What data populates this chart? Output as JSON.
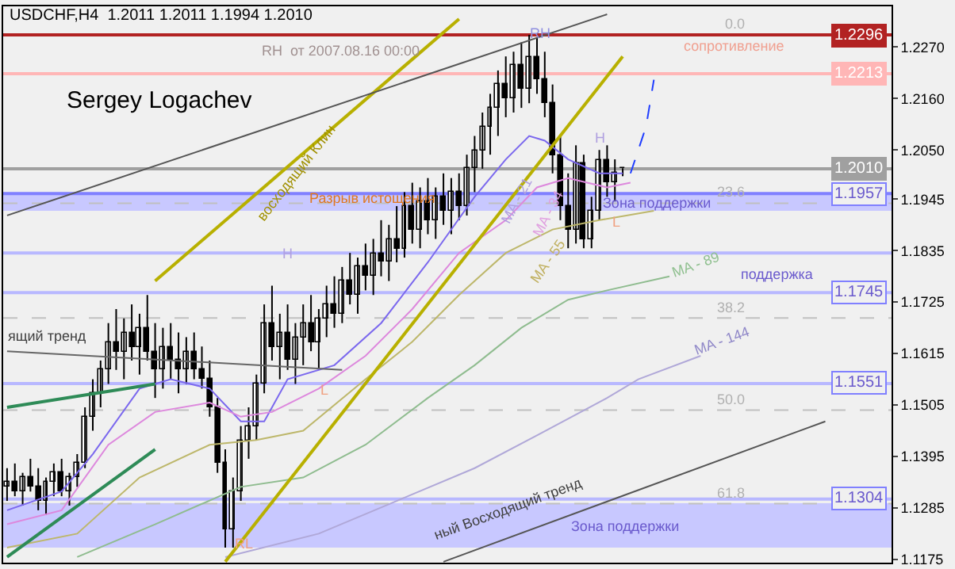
{
  "chart_data": {
    "type": "candlestick",
    "title": "USDCHF,H4  1.2011 1.2011 1.1994 1.2010",
    "categories": [
      null,
      null,
      null,
      null,
      null,
      null,
      null,
      null,
      null,
      null,
      null,
      null,
      null,
      null,
      null,
      null,
      null,
      null,
      null,
      null,
      null,
      null,
      null,
      null,
      null,
      null,
      null,
      null,
      null,
      null,
      null,
      null,
      null,
      null,
      null,
      null,
      null,
      null,
      null,
      null,
      null,
      null,
      null,
      null,
      null,
      null,
      null,
      null,
      null,
      null,
      null,
      null,
      null,
      null,
      null,
      null,
      null,
      null,
      null,
      null,
      null,
      null,
      null,
      null,
      null,
      null,
      null,
      null,
      null,
      null,
      null,
      null,
      null,
      null,
      null,
      null,
      null,
      null,
      null,
      null,
      null,
      null,
      null,
      null,
      null,
      null,
      null,
      null,
      null,
      null,
      null,
      null,
      null,
      null,
      null,
      null,
      null,
      null,
      null,
      null,
      null,
      null,
      null,
      null,
      null,
      null,
      null,
      null,
      null,
      null,
      null,
      null,
      null,
      null
    ],
    "ohlc": [
      [
        1.133,
        1.137,
        1.13,
        1.134
      ],
      [
        1.134,
        1.138,
        1.131,
        1.132
      ],
      [
        1.132,
        1.136,
        1.129,
        1.135
      ],
      [
        1.135,
        1.139,
        1.132,
        1.133
      ],
      [
        1.133,
        1.137,
        1.128,
        1.13
      ],
      [
        1.13,
        1.135,
        1.127,
        1.134
      ],
      [
        1.134,
        1.138,
        1.131,
        1.136
      ],
      [
        1.136,
        1.139,
        1.131,
        1.132
      ],
      [
        1.132,
        1.136,
        1.129,
        1.135
      ],
      [
        1.135,
        1.14,
        1.133,
        1.138
      ],
      [
        1.138,
        1.15,
        1.137,
        1.148
      ],
      [
        1.148,
        1.156,
        1.145,
        1.153
      ],
      [
        1.153,
        1.16,
        1.15,
        1.158
      ],
      [
        1.158,
        1.168,
        1.155,
        1.164
      ],
      [
        1.164,
        1.171,
        1.158,
        1.162
      ],
      [
        1.162,
        1.169,
        1.156,
        1.166
      ],
      [
        1.166,
        1.172,
        1.16,
        1.163
      ],
      [
        1.163,
        1.17,
        1.157,
        1.167
      ],
      [
        1.167,
        1.174,
        1.16,
        1.162
      ],
      [
        1.162,
        1.168,
        1.152,
        1.158
      ],
      [
        1.158,
        1.167,
        1.154,
        1.163
      ],
      [
        1.163,
        1.168,
        1.156,
        1.16
      ],
      [
        1.16,
        1.166,
        1.153,
        1.158
      ],
      [
        1.158,
        1.165,
        1.155,
        1.162
      ],
      [
        1.162,
        1.166,
        1.156,
        1.158
      ],
      [
        1.158,
        1.163,
        1.154,
        1.156
      ],
      [
        1.156,
        1.16,
        1.148,
        1.15
      ],
      [
        1.15,
        1.152,
        1.136,
        1.138
      ],
      [
        1.138,
        1.141,
        1.12,
        1.124
      ],
      [
        1.124,
        1.135,
        1.12,
        1.132
      ],
      [
        1.132,
        1.146,
        1.13,
        1.143
      ],
      [
        1.143,
        1.15,
        1.139,
        1.146
      ],
      [
        1.146,
        1.157,
        1.143,
        1.155
      ],
      [
        1.155,
        1.172,
        1.153,
        1.168
      ],
      [
        1.168,
        1.176,
        1.16,
        1.163
      ],
      [
        1.163,
        1.17,
        1.156,
        1.166
      ],
      [
        1.166,
        1.172,
        1.158,
        1.16
      ],
      [
        1.16,
        1.168,
        1.155,
        1.165
      ],
      [
        1.165,
        1.172,
        1.159,
        1.168
      ],
      [
        1.168,
        1.174,
        1.162,
        1.164
      ],
      [
        1.164,
        1.171,
        1.158,
        1.169
      ],
      [
        1.169,
        1.176,
        1.165,
        1.172
      ],
      [
        1.172,
        1.178,
        1.167,
        1.17
      ],
      [
        1.17,
        1.18,
        1.168,
        1.177
      ],
      [
        1.177,
        1.183,
        1.172,
        1.174
      ],
      [
        1.174,
        1.182,
        1.17,
        1.18
      ],
      [
        1.18,
        1.185,
        1.175,
        1.178
      ],
      [
        1.178,
        1.186,
        1.174,
        1.183
      ],
      [
        1.183,
        1.19,
        1.178,
        1.181
      ],
      [
        1.181,
        1.189,
        1.177,
        1.186
      ],
      [
        1.186,
        1.193,
        1.181,
        1.184
      ],
      [
        1.184,
        1.196,
        1.182,
        1.193
      ],
      [
        1.193,
        1.198,
        1.185,
        1.188
      ],
      [
        1.188,
        1.197,
        1.184,
        1.194
      ],
      [
        1.194,
        1.199,
        1.187,
        1.19
      ],
      [
        1.19,
        1.197,
        1.186,
        1.195
      ],
      [
        1.195,
        1.2,
        1.189,
        1.192
      ],
      [
        1.192,
        1.199,
        1.187,
        1.196
      ],
      [
        1.196,
        1.2,
        1.19,
        1.193
      ],
      [
        1.193,
        1.204,
        1.191,
        1.201
      ],
      [
        1.201,
        1.208,
        1.196,
        1.205
      ],
      [
        1.205,
        1.213,
        1.201,
        1.21
      ],
      [
        1.21,
        1.217,
        1.204,
        1.214
      ],
      [
        1.214,
        1.222,
        1.208,
        1.219
      ],
      [
        1.219,
        1.225,
        1.212,
        1.216
      ],
      [
        1.216,
        1.226,
        1.213,
        1.223
      ],
      [
        1.223,
        1.228,
        1.214,
        1.218
      ],
      [
        1.218,
        1.2296,
        1.215,
        1.225
      ],
      [
        1.225,
        1.229,
        1.217,
        1.22
      ],
      [
        1.22,
        1.226,
        1.212,
        1.215
      ],
      [
        1.215,
        1.219,
        1.2,
        1.204
      ],
      [
        1.204,
        1.208,
        1.19,
        1.193
      ],
      [
        1.193,
        1.2,
        1.184,
        1.188
      ],
      [
        1.188,
        1.206,
        1.185,
        1.202
      ],
      [
        1.202,
        1.204,
        1.184,
        1.186
      ],
      [
        1.186,
        1.195,
        1.184,
        1.192
      ],
      [
        1.192,
        1.205,
        1.19,
        1.203
      ],
      [
        1.203,
        1.206,
        1.195,
        1.198
      ],
      [
        1.198,
        1.203,
        1.194,
        1.2
      ],
      [
        1.2011,
        1.2011,
        1.1994,
        1.201
      ],
      null,
      null,
      null,
      null,
      null,
      null,
      null,
      null,
      null,
      null,
      null,
      null,
      null,
      null,
      null,
      null,
      null,
      null,
      null,
      null,
      null,
      null,
      null,
      null,
      null,
      null,
      null,
      null,
      null,
      null,
      null,
      null,
      null,
      null
    ],
    "color": "#000000",
    "series": [
      {
        "type": "line",
        "color": "#7b68ee",
        "values": [
          1.128,
          null,
          null,
          null,
          null,
          null,
          null,
          1.132,
          null,
          null,
          null,
          1.14,
          null,
          null,
          null,
          null,
          null,
          1.154,
          null,
          null,
          null,
          1.156,
          null,
          null,
          null,
          null,
          1.154,
          null,
          null,
          null,
          1.147,
          null,
          null,
          1.147,
          null,
          null,
          1.156,
          null,
          null,
          null,
          null,
          null,
          1.159,
          null,
          null,
          null,
          null,
          null,
          1.168,
          null,
          null,
          null,
          null,
          null,
          1.181,
          null,
          null,
          null,
          null,
          null,
          1.195,
          null,
          null,
          null,
          1.203,
          null,
          null,
          1.208,
          null,
          1.207,
          null,
          null,
          1.203,
          null,
          null,
          null,
          1.2,
          null,
          null,
          1.2,
          null,
          null,
          null,
          null,
          null,
          null,
          null,
          null,
          null,
          null,
          null,
          null,
          null,
          null,
          null,
          null,
          null,
          null,
          null,
          null,
          null,
          null,
          null,
          null,
          null,
          null,
          null,
          null,
          null,
          null,
          null,
          null,
          null,
          null
        ]
      },
      {
        "type": "line",
        "color": "#dd88dd",
        "values": [
          1.125,
          null,
          null,
          null,
          null,
          null,
          null,
          1.128,
          null,
          null,
          null,
          null,
          null,
          1.142,
          null,
          null,
          null,
          null,
          null,
          1.149,
          null,
          null,
          null,
          null,
          null,
          null,
          1.151,
          null,
          null,
          null,
          1.148,
          null,
          null,
          null,
          1.149,
          null,
          null,
          null,
          null,
          null,
          1.154,
          null,
          null,
          null,
          null,
          null,
          1.161,
          null,
          null,
          null,
          null,
          null,
          1.171,
          null,
          null,
          null,
          null,
          null,
          1.183,
          null,
          null,
          null,
          null,
          null,
          1.19,
          null,
          null,
          null,
          1.197,
          null,
          null,
          null,
          1.199,
          null,
          null,
          null,
          null,
          1.197,
          null,
          null,
          1.198,
          null,
          null,
          null,
          null,
          null,
          null,
          null,
          null,
          null,
          null,
          null,
          null,
          null,
          null,
          null,
          null,
          null,
          null,
          null,
          null,
          null,
          null,
          null,
          null,
          null,
          null,
          null,
          null,
          null,
          null,
          null,
          null,
          null
        ]
      },
      {
        "type": "line",
        "color": "#bdb76b",
        "values": [
          1.12,
          null,
          null,
          null,
          null,
          null,
          null,
          null,
          null,
          1.123,
          null,
          null,
          null,
          null,
          null,
          null,
          null,
          1.135,
          null,
          null,
          null,
          null,
          null,
          null,
          null,
          null,
          1.142,
          null,
          null,
          null,
          null,
          null,
          1.143,
          null,
          null,
          null,
          null,
          null,
          1.145,
          null,
          null,
          null,
          null,
          null,
          null,
          null,
          1.156,
          null,
          null,
          null,
          null,
          null,
          1.164,
          null,
          null,
          null,
          null,
          null,
          1.174,
          null,
          null,
          null,
          null,
          null,
          1.183,
          null,
          null,
          null,
          null,
          null,
          1.188,
          null,
          null,
          null,
          null,
          null,
          1.19,
          null,
          null,
          null,
          null,
          null,
          null,
          1.192,
          null,
          null,
          null,
          null,
          null,
          null,
          null,
          null,
          null,
          null,
          null,
          null,
          null,
          null,
          null,
          null,
          null,
          null,
          null,
          null,
          null,
          null,
          null,
          null,
          null,
          null,
          null,
          null,
          null,
          null
        ]
      },
      {
        "type": "line",
        "color": "#8fbc8f",
        "values": [
          null,
          null,
          null,
          null,
          null,
          null,
          null,
          null,
          null,
          1.118,
          null,
          null,
          null,
          null,
          null,
          null,
          null,
          null,
          null,
          1.125,
          null,
          null,
          null,
          null,
          null,
          null,
          null,
          null,
          null,
          null,
          1.133,
          null,
          null,
          null,
          null,
          null,
          null,
          null,
          1.135,
          null,
          null,
          null,
          null,
          null,
          null,
          null,
          1.142,
          null,
          null,
          null,
          null,
          null,
          null,
          null,
          1.152,
          null,
          null,
          null,
          null,
          null,
          1.159,
          null,
          null,
          null,
          null,
          null,
          1.167,
          null,
          null,
          null,
          null,
          null,
          1.173,
          null,
          null,
          null,
          null,
          1.175,
          null,
          null,
          null,
          null,
          null,
          null,
          null,
          1.178,
          null,
          null,
          null,
          null,
          null,
          null,
          null,
          null,
          null,
          null,
          null,
          null,
          null,
          null,
          null,
          null,
          null,
          null,
          null,
          null,
          null,
          null,
          null,
          null,
          null,
          null,
          null,
          null
        ]
      },
      {
        "type": "line",
        "color": "#b0a8d8",
        "values": [
          null,
          null,
          null,
          null,
          null,
          null,
          null,
          null,
          null,
          null,
          null,
          null,
          null,
          null,
          null,
          null,
          null,
          null,
          null,
          null,
          null,
          null,
          null,
          null,
          null,
          null,
          null,
          null,
          1.118,
          null,
          null,
          null,
          null,
          null,
          null,
          null,
          null,
          null,
          null,
          null,
          1.123,
          null,
          null,
          null,
          null,
          null,
          null,
          null,
          null,
          null,
          1.13,
          null,
          null,
          null,
          null,
          null,
          null,
          null,
          null,
          null,
          1.137,
          null,
          null,
          null,
          null,
          null,
          null,
          null,
          1.144,
          null,
          null,
          null,
          null,
          null,
          null,
          null,
          null,
          1.152,
          null,
          null,
          null,
          1.156,
          null,
          null,
          null,
          null,
          null,
          null,
          null,
          1.161,
          null,
          null,
          null,
          null,
          null,
          null,
          null,
          null,
          null,
          null,
          null,
          null,
          null,
          null,
          null,
          null,
          null,
          null,
          null,
          null,
          null,
          null,
          null,
          null
        ]
      },
      {
        "type": "line",
        "color": "#b8b000",
        "values": [
          null,
          null,
          null,
          null,
          null,
          null,
          null,
          null,
          null,
          null,
          null,
          null,
          null,
          null,
          null,
          null,
          null,
          null,
          null,
          1.177,
          null,
          null,
          null,
          null,
          null,
          null,
          null,
          null,
          null,
          null,
          null,
          null,
          null,
          null,
          null,
          null,
          null,
          null,
          null,
          null,
          null,
          null,
          null,
          null,
          null,
          null,
          null,
          null,
          null,
          null,
          null,
          null,
          null,
          null,
          null,
          null,
          null,
          null,
          1.233,
          null,
          null,
          null,
          null,
          null,
          null,
          null,
          null,
          null,
          null,
          null,
          null,
          null,
          null,
          null,
          null,
          null,
          null,
          null,
          null,
          null,
          null,
          null,
          null,
          null,
          null,
          null,
          null,
          null,
          null,
          null,
          null,
          null,
          null,
          null,
          null,
          null,
          null,
          null,
          null,
          null,
          null,
          null,
          null,
          null,
          null,
          null,
          null,
          null,
          null,
          null,
          null,
          null,
          null,
          null
        ]
      },
      {
        "type": "line",
        "color": "#b8b000",
        "values": [
          null,
          null,
          null,
          null,
          null,
          null,
          null,
          null,
          null,
          null,
          null,
          null,
          null,
          null,
          null,
          null,
          null,
          null,
          null,
          null,
          null,
          null,
          null,
          null,
          null,
          null,
          null,
          null,
          1.117,
          null,
          null,
          null,
          null,
          null,
          null,
          null,
          null,
          null,
          null,
          null,
          null,
          null,
          null,
          null,
          null,
          null,
          null,
          null,
          null,
          null,
          null,
          null,
          null,
          null,
          null,
          null,
          null,
          null,
          null,
          null,
          null,
          null,
          null,
          null,
          null,
          null,
          null,
          null,
          null,
          null,
          null,
          null,
          null,
          null,
          null,
          null,
          null,
          null,
          null,
          1.225,
          null,
          null,
          null,
          null,
          null,
          null,
          null,
          null,
          null,
          null,
          null,
          null,
          null,
          null,
          null,
          null,
          null,
          null,
          null,
          null,
          null,
          null,
          null,
          null,
          null,
          null,
          null,
          null,
          null,
          null,
          null,
          null,
          null,
          null
        ]
      },
      {
        "type": "line",
        "color": "#555555",
        "values": [
          1.191,
          null,
          null,
          null,
          null,
          null,
          null,
          null,
          null,
          null,
          null,
          null,
          null,
          null,
          null,
          null,
          null,
          null,
          null,
          null,
          null,
          null,
          null,
          null,
          null,
          null,
          null,
          null,
          null,
          null,
          null,
          null,
          null,
          null,
          null,
          null,
          null,
          null,
          null,
          null,
          null,
          null,
          null,
          null,
          null,
          null,
          null,
          null,
          null,
          null,
          null,
          null,
          null,
          null,
          null,
          null,
          null,
          null,
          null,
          null,
          null,
          null,
          null,
          null,
          null,
          null,
          null,
          null,
          null,
          null,
          null,
          null,
          null,
          null,
          null,
          null,
          null,
          1.234,
          null,
          null,
          null,
          null,
          null,
          null,
          null,
          null,
          null,
          null,
          null,
          null,
          null,
          null,
          null,
          null,
          null,
          null,
          null,
          null,
          null,
          null,
          null,
          null,
          null,
          null,
          null,
          null,
          null,
          null,
          null,
          null,
          null,
          null,
          null,
          null
        ]
      },
      {
        "type": "line",
        "color": "#555555",
        "values": [
          null,
          null,
          null,
          null,
          null,
          null,
          null,
          null,
          null,
          null,
          null,
          null,
          null,
          null,
          null,
          null,
          null,
          null,
          null,
          null,
          null,
          null,
          null,
          null,
          null,
          null,
          null,
          null,
          null,
          null,
          null,
          null,
          null,
          null,
          null,
          null,
          null,
          null,
          null,
          null,
          null,
          null,
          null,
          null,
          null,
          null,
          null,
          null,
          null,
          null,
          null,
          null,
          null,
          null,
          null,
          null,
          1.117,
          null,
          null,
          null,
          null,
          null,
          null,
          null,
          null,
          null,
          null,
          null,
          null,
          null,
          null,
          null,
          null,
          null,
          null,
          null,
          null,
          null,
          null,
          null,
          null,
          null,
          null,
          null,
          null,
          null,
          null,
          null,
          null,
          null,
          null,
          null,
          null,
          null,
          null,
          null,
          null,
          null,
          null,
          null,
          null,
          null,
          null,
          null,
          null,
          1.147,
          null,
          null,
          null,
          null,
          null,
          null,
          null,
          null
        ]
      },
      {
        "type": "line",
        "color": "#2e8b57",
        "values": [
          1.15,
          null,
          null,
          null,
          null,
          null,
          null,
          null,
          null,
          null,
          null,
          null,
          null,
          null,
          null,
          null,
          null,
          null,
          null,
          1.155,
          null,
          null,
          null,
          null,
          null,
          null,
          null,
          null,
          null,
          null,
          null,
          null,
          null,
          null,
          null,
          null,
          null,
          null,
          null,
          null,
          null,
          null,
          null,
          null,
          null,
          null,
          null,
          null,
          null,
          null,
          null,
          null,
          null,
          null,
          null,
          null,
          null,
          null,
          null,
          null,
          null,
          null,
          null,
          null,
          null,
          null,
          null,
          null,
          null,
          null,
          null,
          null,
          null,
          null,
          null,
          null,
          null,
          null,
          null,
          null,
          null,
          null,
          null,
          null,
          null,
          null,
          null,
          null,
          null,
          null,
          null,
          null,
          null,
          null,
          null,
          null,
          null,
          null,
          null,
          null,
          null,
          null,
          null,
          null,
          null,
          null,
          null,
          null,
          null,
          null,
          null,
          null,
          null,
          null
        ]
      },
      {
        "type": "line",
        "color": "#2e8b57",
        "values": [
          1.118,
          null,
          null,
          null,
          null,
          null,
          null,
          null,
          null,
          null,
          null,
          null,
          null,
          null,
          null,
          null,
          null,
          null,
          null,
          1.141,
          null,
          null,
          null,
          null,
          null,
          null,
          null,
          null,
          null,
          null,
          null,
          null,
          null,
          null,
          null,
          null,
          null,
          null,
          null,
          null,
          null,
          null,
          null,
          null,
          null,
          null,
          null,
          null,
          null,
          null,
          null,
          null,
          null,
          null,
          null,
          null,
          null,
          null,
          null,
          null,
          null,
          null,
          null,
          null,
          null,
          null,
          null,
          null,
          null,
          null,
          null,
          null,
          null,
          null,
          null,
          null,
          null,
          null,
          null,
          null,
          null,
          null,
          null,
          null,
          null,
          null,
          null,
          null,
          null,
          null,
          null,
          null,
          null,
          null,
          null,
          null,
          null,
          null,
          null,
          null,
          null,
          null,
          null,
          null,
          null,
          null,
          null,
          null,
          null,
          null,
          null,
          null,
          null,
          null
        ]
      },
      {
        "type": "line",
        "color": "#666666",
        "values": [
          1.162,
          null,
          null,
          null,
          null,
          null,
          null,
          null,
          null,
          null,
          null,
          null,
          null,
          null,
          null,
          null,
          null,
          null,
          null,
          null,
          null,
          null,
          null,
          null,
          null,
          null,
          null,
          null,
          null,
          null,
          null,
          null,
          null,
          null,
          null,
          null,
          null,
          null,
          null,
          null,
          null,
          null,
          null,
          1.158,
          null,
          null,
          null,
          null,
          null,
          null,
          null,
          null,
          null,
          null,
          null,
          null,
          null,
          null,
          null,
          null,
          null,
          null,
          null,
          null,
          null,
          null,
          null,
          null,
          null,
          null,
          null,
          null,
          null,
          null,
          null,
          null,
          null,
          null,
          null,
          null,
          null,
          null,
          null,
          null,
          null,
          null,
          null,
          null,
          null,
          null,
          null,
          null,
          null,
          null,
          null,
          null,
          null,
          null,
          null,
          null,
          null,
          null,
          null,
          null,
          null,
          null,
          null,
          null,
          null,
          null,
          null,
          null,
          null,
          null
        ]
      },
      {
        "type": "line",
        "color": "#1e3cff",
        "line_style": "dashed",
        "values": [
          null,
          null,
          null,
          null,
          null,
          null,
          null,
          null,
          null,
          null,
          null,
          null,
          null,
          null,
          null,
          null,
          null,
          null,
          null,
          null,
          null,
          null,
          null,
          null,
          null,
          null,
          null,
          null,
          null,
          null,
          null,
          null,
          null,
          null,
          null,
          null,
          null,
          null,
          null,
          null,
          null,
          null,
          null,
          null,
          null,
          null,
          null,
          null,
          null,
          null,
          null,
          null,
          null,
          null,
          null,
          null,
          null,
          null,
          null,
          null,
          null,
          null,
          null,
          null,
          null,
          null,
          null,
          null,
          null,
          null,
          null,
          null,
          null,
          null,
          null,
          null,
          null,
          null,
          null,
          null,
          1.2,
          null,
          1.21,
          1.22,
          null,
          null,
          null,
          null,
          null,
          null,
          null,
          null,
          null,
          null,
          null,
          null,
          null,
          null,
          null,
          null,
          null,
          null,
          null,
          null,
          null,
          null,
          null,
          null,
          null,
          null,
          null,
          null,
          null,
          null
        ]
      }
    ],
    "ylim": [
      1.1168,
      1.2357
    ],
    "yticks": [
      {
        "value": 1.227,
        "label": "1.2270"
      },
      {
        "value": 1.216,
        "label": "1.2160"
      },
      {
        "value": 1.205,
        "label": "1.2050"
      },
      {
        "value": 1.1945,
        "label": "1.1945"
      },
      {
        "value": 1.1835,
        "label": "1.1835"
      },
      {
        "value": 1.1725,
        "label": "1.1725"
      },
      {
        "value": 1.1615,
        "label": "1.1615"
      },
      {
        "value": 1.1505,
        "label": "1.1505"
      },
      {
        "value": 1.1395,
        "label": "1.1395"
      },
      {
        "value": 1.1285,
        "label": "1.1285"
      },
      {
        "value": 1.1175,
        "label": "1.1175"
      }
    ],
    "tick_labels": "y",
    "ref_lines": [
      {
        "axis": "y",
        "value": 1.2296,
        "label": "1.2296",
        "color": "#b22222"
      },
      {
        "axis": "y",
        "value": 1.2213,
        "label": "1.2213",
        "color": "#ffb6b6"
      },
      {
        "axis": "y",
        "value": 1.201,
        "label": "1.2010",
        "color": "#a0a0a0"
      },
      {
        "axis": "y",
        "value": 1.1957,
        "label": "1.1957",
        "color": "#8080ff"
      },
      {
        "axis": "y",
        "value": 1.183,
        "label": null,
        "color": "#b8b8ff"
      },
      {
        "axis": "y",
        "value": 1.1745,
        "label": "1.1745",
        "color": "#b8b8ff"
      },
      {
        "axis": "y",
        "value": 1.1551,
        "label": "1.1551",
        "color": "#b8b8ff"
      },
      {
        "axis": "y",
        "value": 1.1304,
        "label": "1.1304",
        "color": "#b8b8ff"
      },
      {
        "axis": "y",
        "value": 1.1936,
        "color": "#c0c0c0",
        "line_style": "dashed"
      },
      {
        "axis": "y",
        "value": 1.1691,
        "color": "#c0c0c0",
        "line_style": "dashed"
      },
      {
        "axis": "y",
        "value": 1.1494,
        "color": "#c0c0c0",
        "line_style": "dashed"
      },
      {
        "axis": "y",
        "value": 1.1294,
        "color": "#c0c0c0",
        "line_style": "dashed"
      }
    ],
    "bands": [
      {
        "axis": "y",
        "from": 1.192,
        "to": 1.1955,
        "label": "Зона поддержки",
        "color": "#c8c8ff"
      },
      {
        "axis": "y",
        "from": 1.12,
        "to": 1.1295,
        "label": "Зона поддержки",
        "color": "#c8c8ff"
      }
    ],
    "annotations": [
      "Sergey Logachev",
      {
        "text": "0.0",
        "y": 1.2296
      },
      {
        "text": "23.6",
        "y": 1.1936
      },
      {
        "text": "38.2",
        "y": 1.1691
      },
      {
        "text": "50.0",
        "y": 1.1494
      },
      {
        "text": "61.8",
        "y": 1.1294
      },
      "RH  от 2007.08.16 00:00",
      "сопротивление",
      "RH",
      "H",
      "L",
      "H",
      "L",
      "RL",
      "Разрыв истощения",
      "восходящий Клин",
      "MA - 21",
      "MA - 34",
      "MA - 55",
      "MA - 89",
      "MA - 144",
      "поддержка",
      "ящий тренд",
      "ный Восходящий тренд"
    ],
    "grid": false
  }
}
